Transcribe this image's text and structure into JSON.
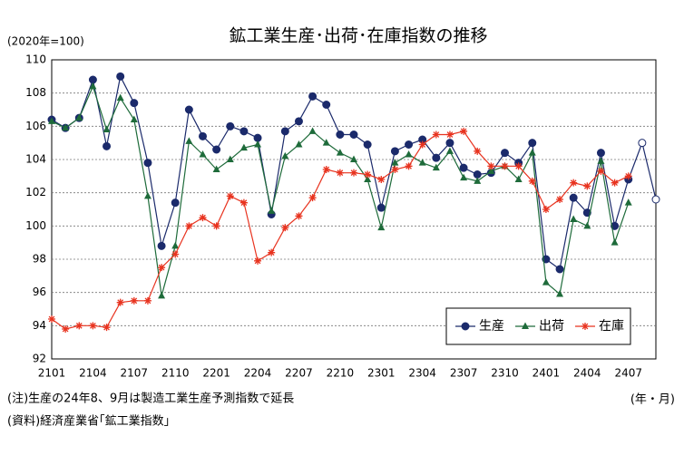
{
  "chart_data": {
    "type": "line",
    "title": "鉱工業生産･出荷･在庫指数の推移",
    "y_unit": "(2020年=100)",
    "x_unit": "(年・月)",
    "notes": [
      "(注)生産の24年8、9月は製造工業生産予測指数で延長",
      "(資料)経済産業省｢鉱工業指数｣"
    ],
    "categories": [
      "2101",
      null,
      null,
      "2104",
      null,
      null,
      "2107",
      null,
      null,
      "2110",
      null,
      null,
      "2201",
      null,
      null,
      "2204",
      null,
      null,
      "2207",
      null,
      null,
      "2210",
      null,
      null,
      "2301",
      null,
      null,
      "2304",
      null,
      null,
      "2307",
      null,
      null,
      "2310",
      null,
      null,
      "2401",
      null,
      null,
      "2404",
      null,
      null,
      "2407",
      null,
      null
    ],
    "ylim": [
      92,
      110
    ],
    "yticks": [
      92,
      94,
      96,
      98,
      100,
      102,
      104,
      106,
      108,
      110
    ],
    "grid": true,
    "legend": "lower right",
    "series": [
      {
        "name": "生産",
        "color": "#1b2a6b",
        "marker": "circle",
        "open_markers": [
          43,
          44
        ],
        "values": [
          106.4,
          105.9,
          106.5,
          108.8,
          104.8,
          109.0,
          107.4,
          103.8,
          98.8,
          101.4,
          107.0,
          105.4,
          104.6,
          106.0,
          105.7,
          105.3,
          100.7,
          105.7,
          106.3,
          107.8,
          107.3,
          105.5,
          105.5,
          104.9,
          101.1,
          104.5,
          104.9,
          105.2,
          104.1,
          105.0,
          103.5,
          103.1,
          103.2,
          104.4,
          103.8,
          105.0,
          98.0,
          97.4,
          101.7,
          100.8,
          104.4,
          100.0,
          102.8,
          105.0,
          101.6
        ]
      },
      {
        "name": "出荷",
        "color": "#1e6b3a",
        "marker": "triangle",
        "values": [
          106.3,
          105.9,
          106.5,
          108.4,
          105.8,
          107.7,
          106.4,
          101.8,
          95.8,
          98.8,
          105.1,
          104.3,
          103.4,
          104.0,
          104.7,
          104.9,
          100.9,
          104.2,
          104.9,
          105.7,
          105.0,
          104.4,
          104.0,
          102.8,
          99.9,
          103.8,
          104.3,
          103.8,
          103.5,
          104.5,
          102.9,
          102.7,
          103.3,
          103.6,
          102.8,
          104.4,
          96.6,
          95.9,
          100.4,
          100.0,
          103.9,
          99.0,
          101.4,
          null,
          null
        ]
      },
      {
        "name": "在庫",
        "color": "#e8331f",
        "marker": "star",
        "values": [
          94.4,
          93.8,
          94.0,
          94.0,
          93.9,
          95.4,
          95.5,
          95.5,
          97.5,
          98.3,
          100.0,
          100.5,
          100.0,
          101.8,
          101.4,
          97.9,
          98.4,
          99.9,
          100.6,
          101.7,
          103.4,
          103.2,
          103.2,
          103.1,
          102.8,
          103.4,
          103.6,
          104.9,
          105.5,
          105.5,
          105.7,
          104.5,
          103.6,
          103.6,
          103.6,
          102.7,
          101.0,
          101.6,
          102.6,
          102.4,
          103.3,
          102.6,
          103.0,
          null,
          null
        ]
      }
    ]
  }
}
